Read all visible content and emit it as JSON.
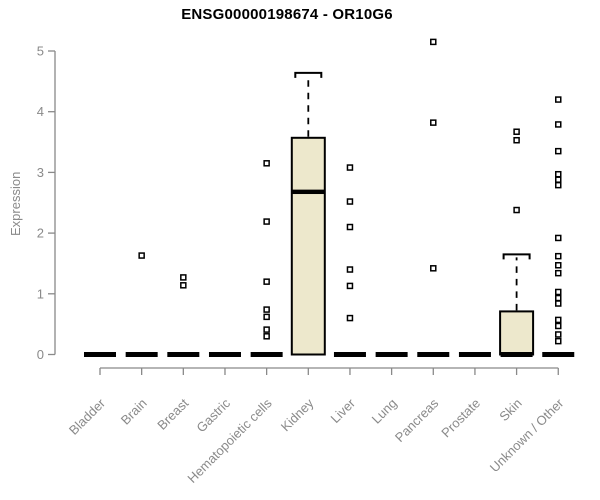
{
  "chart_data": {
    "type": "boxplot",
    "title": "ENSG00000198674 - OR10G6",
    "ylabel": "Expression",
    "xlabel": "",
    "ylim": [
      0,
      5
    ],
    "yticks": [
      0,
      1,
      2,
      3,
      4,
      5
    ],
    "grid": false,
    "legend": "none",
    "categories": [
      "Bladder",
      "Brain",
      "Breast",
      "Gastric",
      "Hematopoietic cells",
      "Kidney",
      "Liver",
      "Lung",
      "Pancreas",
      "Prostate",
      "Skin",
      "Unknown / Other"
    ],
    "series": [
      {
        "category": "Bladder",
        "q1": 0,
        "median": 0,
        "q3": 0,
        "whisker_low": 0,
        "whisker_high": 0,
        "outliers": []
      },
      {
        "category": "Brain",
        "q1": 0,
        "median": 0,
        "q3": 0,
        "whisker_low": 0,
        "whisker_high": 0,
        "outliers": [
          1.63
        ]
      },
      {
        "category": "Breast",
        "q1": 0,
        "median": 0,
        "q3": 0,
        "whisker_low": 0,
        "whisker_high": 0,
        "outliers": [
          1.27,
          1.14
        ]
      },
      {
        "category": "Gastric",
        "q1": 0,
        "median": 0,
        "q3": 0,
        "whisker_low": 0,
        "whisker_high": 0,
        "outliers": []
      },
      {
        "category": "Hematopoietic cells",
        "q1": 0,
        "median": 0,
        "q3": 0,
        "whisker_low": 0,
        "whisker_high": 0,
        "outliers": [
          3.15,
          2.19,
          1.2,
          0.74,
          0.62,
          0.41,
          0.3
        ]
      },
      {
        "category": "Kidney",
        "q1": 0,
        "median": 2.68,
        "q3": 3.57,
        "whisker_low": 0,
        "whisker_high": 4.64,
        "outliers": []
      },
      {
        "category": "Liver",
        "q1": 0,
        "median": 0,
        "q3": 0,
        "whisker_low": 0,
        "whisker_high": 0,
        "outliers": [
          3.08,
          2.52,
          2.1,
          1.4,
          1.13,
          0.6
        ]
      },
      {
        "category": "Lung",
        "q1": 0,
        "median": 0,
        "q3": 0,
        "whisker_low": 0,
        "whisker_high": 0,
        "outliers": []
      },
      {
        "category": "Pancreas",
        "q1": 0,
        "median": 0,
        "q3": 0,
        "whisker_low": 0,
        "whisker_high": 0,
        "outliers": [
          5.15,
          3.82,
          1.42
        ]
      },
      {
        "category": "Prostate",
        "q1": 0,
        "median": 0,
        "q3": 0,
        "whisker_low": 0,
        "whisker_high": 0,
        "outliers": []
      },
      {
        "category": "Skin",
        "q1": 0,
        "median": 0,
        "q3": 0.71,
        "whisker_low": 0,
        "whisker_high": 1.65,
        "outliers": [
          3.67,
          3.53,
          2.38
        ]
      },
      {
        "category": "Unknown / Other",
        "q1": 0,
        "median": 0,
        "q3": 0,
        "whisker_low": 0,
        "whisker_high": 0,
        "outliers": [
          4.2,
          3.79,
          3.35,
          2.97,
          2.88,
          2.79,
          1.92,
          1.62,
          1.47,
          1.34,
          1.03,
          0.93,
          0.84,
          0.57,
          0.47,
          0.33,
          0.22
        ]
      }
    ],
    "style": {
      "box_fill": "#EDE8CC",
      "box_stroke": "#000000",
      "median_color": "#000000",
      "axis_color": "#898989",
      "tick_label_color": "#8a8a8a",
      "title_color": "#000000",
      "marker": "open-square",
      "marker_fill": "#ffffff",
      "marker_stroke": "#000000"
    }
  }
}
